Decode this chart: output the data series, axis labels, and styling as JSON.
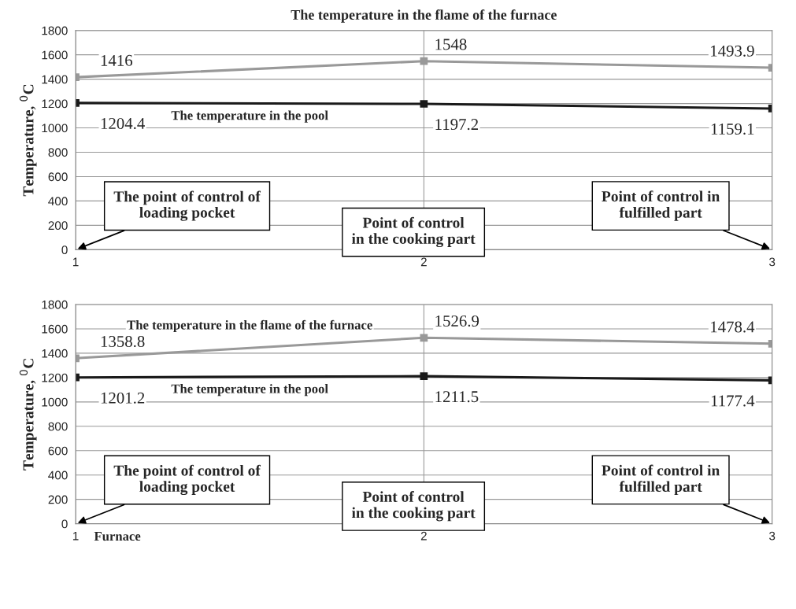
{
  "chart_data": [
    {
      "type": "line",
      "title": "The temperature in the flame of the furnace",
      "ylabel": "Temperature, $^{0}$C",
      "x": [
        1,
        2,
        3
      ],
      "xlim": [
        1,
        3
      ],
      "xticks": [
        1,
        2,
        3
      ],
      "ylim": [
        0,
        1800
      ],
      "yticks": [
        0,
        200,
        400,
        600,
        800,
        1000,
        1200,
        1400,
        1600,
        1800
      ],
      "grid": true,
      "marker": "square",
      "line_style": "solid",
      "data_labels": true,
      "series": [
        {
          "color": "#999999",
          "values": [
            1416,
            1548,
            1493.9
          ]
        },
        {
          "name": "The temperature in the pool",
          "color": "#1a1a1a",
          "values": [
            1204.4,
            1197.2,
            1159.1
          ]
        }
      ],
      "annotations": [
        "The point of control of\nloading pocket",
        "Point of control\nin the cooking part",
        "Point of control in\nfulfilled part"
      ]
    },
    {
      "type": "line",
      "ylabel": "Temperature, $^{0}$C",
      "xlabel": "Furnace",
      "x": [
        1,
        2,
        3
      ],
      "xlim": [
        1,
        3
      ],
      "xticks": [
        1,
        2,
        3
      ],
      "ylim": [
        0,
        1800
      ],
      "yticks": [
        0,
        200,
        400,
        600,
        800,
        1000,
        1200,
        1400,
        1600,
        1800
      ],
      "grid": true,
      "marker": "square",
      "line_style": "solid",
      "data_labels": true,
      "series": [
        {
          "name": "The temperature in the flame of the furnace",
          "color": "#999999",
          "values": [
            1358.8,
            1526.9,
            1478.4
          ]
        },
        {
          "name": "The temperature in the pool",
          "color": "#1a1a1a",
          "values": [
            1201.2,
            1211.5,
            1177.4
          ]
        }
      ],
      "annotations": [
        "The point of control of\nloading pocket",
        "Point of control\nin the cooking part",
        "Point of control in\nfulfilled part"
      ]
    }
  ]
}
